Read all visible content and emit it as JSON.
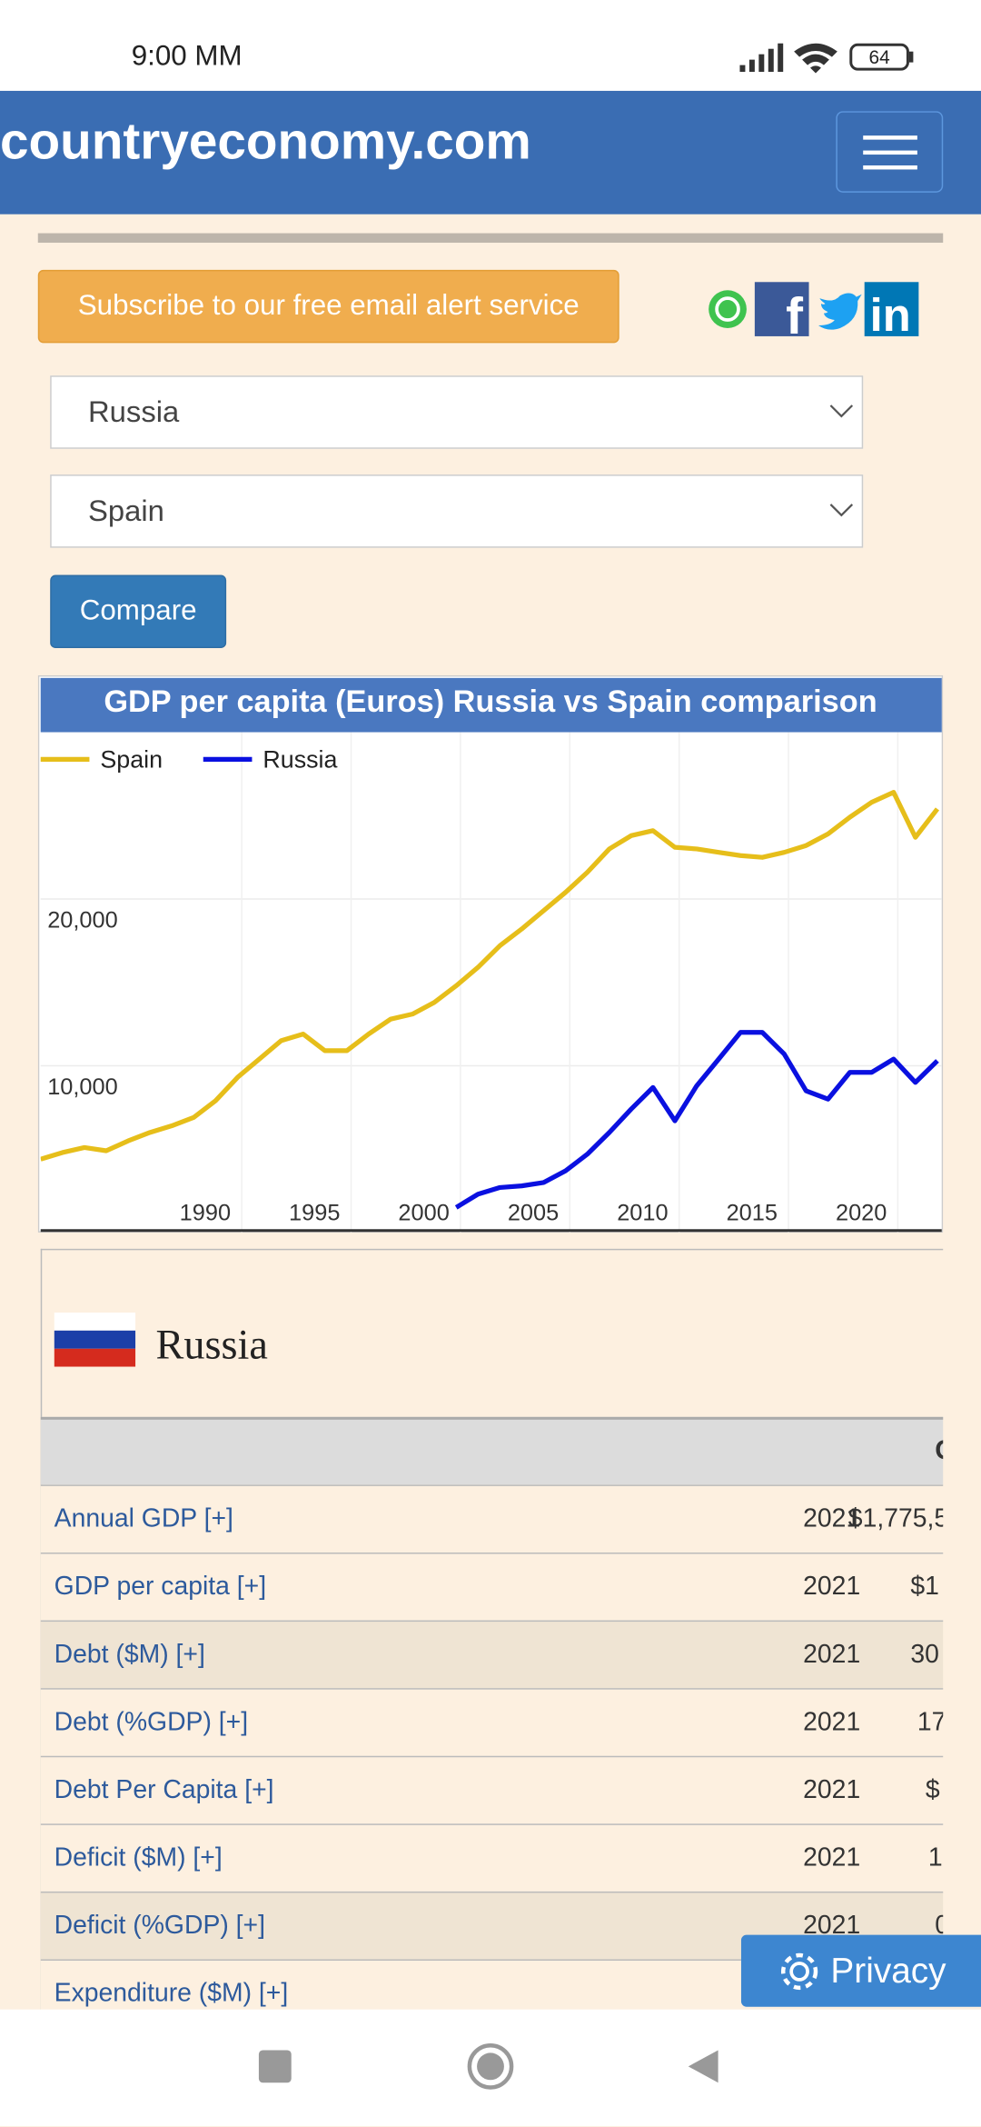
{
  "status_bar": {
    "time": "9:00 MM",
    "battery": "64"
  },
  "header": {
    "site": "countryeconomy.com"
  },
  "subscribe": "Subscribe to our free email alert service",
  "selects": [
    "Russia",
    "Spain"
  ],
  "compare": "Compare",
  "chart_data": {
    "type": "line",
    "title": "GDP per capita (Euros) Russia vs Spain comparison",
    "x": [
      1980,
      1981,
      1982,
      1983,
      1984,
      1985,
      1986,
      1987,
      1988,
      1989,
      1990,
      1991,
      1992,
      1993,
      1994,
      1995,
      1996,
      1997,
      1998,
      1999,
      2000,
      2001,
      2002,
      2003,
      2004,
      2005,
      2006,
      2007,
      2008,
      2009,
      2010,
      2011,
      2012,
      2013,
      2014,
      2015,
      2016,
      2017,
      2018,
      2019,
      2020,
      2021
    ],
    "series": [
      {
        "name": "Spain",
        "color": "#e6be1a",
        "values": [
          4400,
          4800,
          5100,
          4900,
          5500,
          6000,
          6400,
          6900,
          7900,
          9300,
          10400,
          11500,
          11900,
          10900,
          10900,
          11900,
          12800,
          13100,
          13800,
          14800,
          15900,
          17200,
          18200,
          19300,
          20400,
          21600,
          23000,
          23800,
          24100,
          23100,
          23000,
          22800,
          22600,
          22500,
          22800,
          23200,
          23900,
          24900,
          25800,
          26400,
          23700,
          25400
        ]
      },
      {
        "name": "Russia",
        "color": "#0a10e0",
        "values": [
          null,
          null,
          null,
          null,
          null,
          null,
          null,
          null,
          null,
          null,
          null,
          null,
          null,
          null,
          null,
          null,
          null,
          null,
          null,
          1500,
          2300,
          2700,
          2800,
          3000,
          3700,
          4700,
          6000,
          7400,
          8700,
          6700,
          8800,
          10400,
          12000,
          12000,
          10700,
          8500,
          8000,
          9600,
          9600,
          10400,
          9000,
          10300
        ]
      }
    ],
    "xlim": [
      1980,
      2021.2
    ],
    "xticks": [
      1990,
      1995,
      2000,
      2005,
      2010,
      2015,
      2020
    ],
    "ylim": [
      0,
      30000
    ],
    "yticks": [
      {
        "value": 10000,
        "label": "10,000"
      },
      {
        "value": 20000,
        "label": "20,000"
      }
    ],
    "grid": true,
    "legend": "top-left"
  },
  "table": {
    "country": "Russia",
    "header": "C",
    "rows": [
      [
        "Annual GDP [+]",
        2021,
        "$1,775,5"
      ],
      [
        "GDP per capita [+]",
        2021,
        "$1"
      ],
      [
        "Debt ($M) [+]",
        2021,
        "30"
      ],
      [
        "Debt (%GDP) [+]",
        2021,
        "17"
      ],
      [
        "Debt Per Capita [+]",
        2021,
        "$"
      ],
      [
        "Deficit ($M) [+]",
        2021,
        "1"
      ],
      [
        "Deficit (%GDP) [+]",
        2021,
        "0"
      ],
      [
        "Expenditure ($M) [+]",
        null,
        null
      ]
    ]
  },
  "privacy": "Privacy"
}
